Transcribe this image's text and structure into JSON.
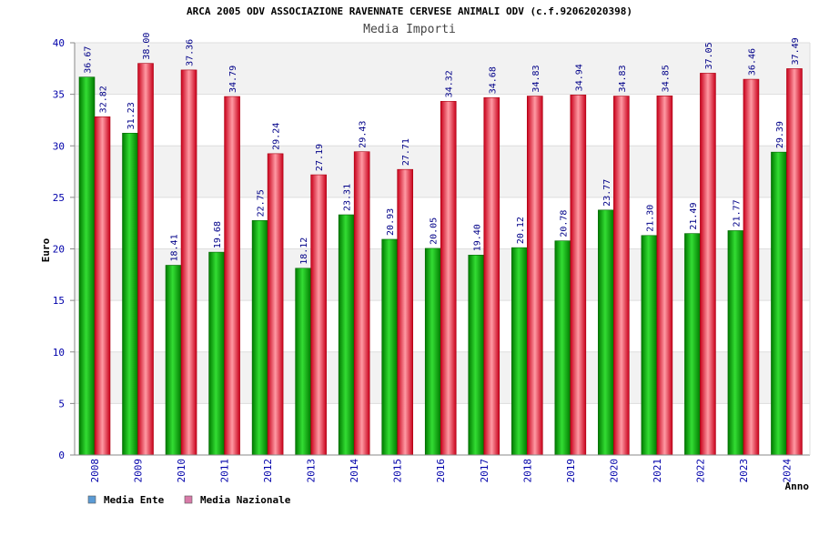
{
  "chart_data": {
    "type": "bar",
    "title": "ARCA 2005 ODV ASSOCIAZIONE RAVENNATE CERVESE ANIMALI ODV (c.f.92062020398)",
    "subtitle": "Media Importi",
    "xlabel": "Anno",
    "ylabel": "Euro",
    "ylim": [
      0,
      40
    ],
    "yticks": [
      0,
      5,
      10,
      15,
      20,
      25,
      30,
      35,
      40
    ],
    "grid": true,
    "legend_position": "bottom-left",
    "categories": [
      "2008",
      "2009",
      "2010",
      "2011",
      "2012",
      "2013",
      "2014",
      "2015",
      "2016",
      "2017",
      "2018",
      "2019",
      "2020",
      "2021",
      "2022",
      "2023",
      "2024"
    ],
    "series": [
      {
        "name": "Media Ente",
        "color": "#00aa00",
        "legend_color": "#5b9bd5",
        "values": [
          36.67,
          31.23,
          18.41,
          19.68,
          22.75,
          18.12,
          23.31,
          20.93,
          20.05,
          19.4,
          20.12,
          20.78,
          23.77,
          21.3,
          21.49,
          21.77,
          29.39
        ],
        "labels": [
          "36.67",
          "31.23",
          "18.41",
          "19.68",
          "22.75",
          "18.12",
          "23.31",
          "20.93",
          "20.05",
          "19.40",
          "20.12",
          "20.78",
          "23.77",
          "21.30",
          "21.49",
          "21.77",
          "29.39"
        ]
      },
      {
        "name": "Media Nazionale",
        "color": "#dd1122",
        "legend_color": "#d87aa8",
        "values": [
          32.82,
          38.0,
          37.36,
          34.79,
          29.24,
          27.19,
          29.43,
          27.71,
          34.32,
          34.68,
          34.83,
          34.94,
          34.83,
          34.85,
          37.05,
          36.46,
          37.49
        ],
        "labels": [
          "32.82",
          "38.00",
          "37.36",
          "34.79",
          "29.24",
          "27.19",
          "29.43",
          "27.71",
          "34.32",
          "34.68",
          "34.83",
          "34.94",
          "34.83",
          "34.85",
          "37.05",
          "36.46",
          "37.49"
        ]
      }
    ]
  }
}
